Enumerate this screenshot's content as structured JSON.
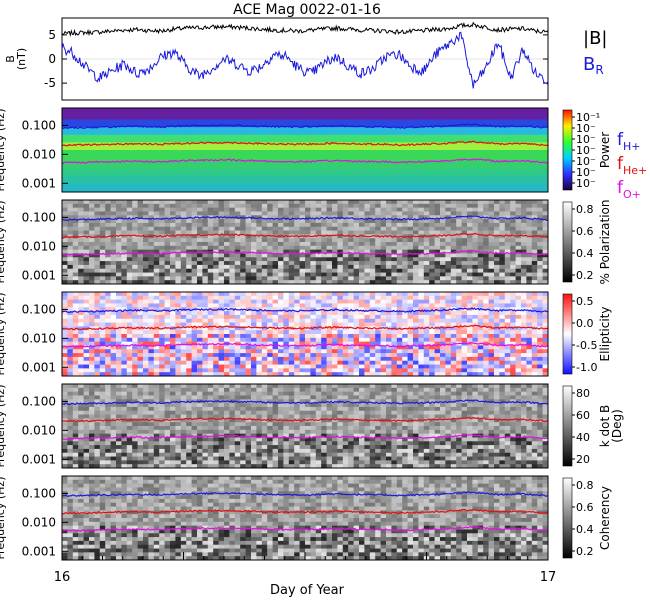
{
  "title": "ACE Mag 0022-01-16",
  "xlabel": "Day of Year",
  "x_start": "16",
  "x_end": "17",
  "colors": {
    "total_field": "#000000",
    "radial_field": "#1a1adc",
    "f_h": "#1a1adc",
    "f_he": "#e01010",
    "f_o": "#e010e0"
  },
  "legend_top": {
    "b_total": "|B|",
    "b_radial": "B",
    "b_radial_sub": "R"
  },
  "legend_freq": [
    {
      "base": "f",
      "sub": "H+",
      "color": "#1a1adc"
    },
    {
      "base": "f",
      "sub": "He+",
      "color": "#e01010"
    },
    {
      "base": "f",
      "sub": "O+",
      "color": "#e010e0"
    }
  ],
  "chart_data": [
    {
      "type": "line",
      "ylabel": "B\n(nT)",
      "ylim": [
        -8.5,
        8.5
      ],
      "yticks": [
        5,
        0,
        -5
      ],
      "ytick_labels": [
        "5",
        "0",
        "-5"
      ],
      "series": [
        {
          "name": "|B|",
          "y": [
            5.2,
            5.4,
            5.5,
            5.6,
            5.8,
            6.0,
            6.1,
            5.9,
            5.8,
            6.2,
            6.4,
            6.5,
            6.6,
            6.7,
            6.6,
            6.4,
            6.2,
            6.0,
            5.9,
            5.8,
            6.0,
            6.2,
            6.4,
            6.2,
            6.0,
            5.9,
            5.8,
            5.6,
            5.7,
            5.9,
            6.1,
            6.3,
            6.9,
            7.1,
            6.6,
            6.0,
            6.2,
            6.3,
            5.8,
            5.5
          ]
        },
        {
          "name": "BR",
          "y": [
            2.5,
            1.0,
            -2.0,
            -4.0,
            -2.5,
            -1.0,
            -3.0,
            -2.0,
            0.5,
            1.5,
            -1.5,
            -3.5,
            -2.0,
            0.0,
            -1.0,
            -2.5,
            -1.5,
            1.0,
            0.5,
            -2.0,
            -3.0,
            -1.0,
            0.5,
            -1.5,
            -3.0,
            -2.0,
            0.5,
            1.0,
            -1.5,
            -2.5,
            1.0,
            3.0,
            5.0,
            -5.5,
            -2.0,
            3.5,
            -4.0,
            2.0,
            -3.0,
            -4.5
          ]
        }
      ]
    },
    {
      "type": "heatmap",
      "ylabel": "Frequency (Hz)",
      "yscale": "log",
      "ylim": [
        0.0005,
        0.4
      ],
      "yticks": [
        0.1,
        0.01,
        0.001
      ],
      "ytick_labels": [
        "0.100",
        "0.010",
        "0.001"
      ],
      "colorbar_label": "Power",
      "colorbar_ticks": [
        "10⁻¹",
        "10⁻",
        "10⁻",
        "10⁻",
        "10⁻",
        "10⁻",
        "10⁻"
      ],
      "colormap": "rainbow",
      "band_colors": [
        "#6420a0",
        "#2a48e0",
        "#28b8e0",
        "#40e070",
        "#a0f040",
        "#3ad858",
        "#34d070",
        "#2ec88a",
        "#28c0a8",
        "#24b8c8"
      ]
    },
    {
      "type": "heatmap",
      "ylabel": "Frequency (Hz)",
      "yscale": "log",
      "ylim": [
        0.0005,
        0.4
      ],
      "yticks": [
        0.1,
        0.01,
        0.001
      ],
      "ytick_labels": [
        "0.100",
        "0.010",
        "0.001"
      ],
      "colorbar_label": "% Polarization",
      "colorbar_ticks": [
        "0.8",
        "0.6",
        "0.4",
        "0.2"
      ],
      "colormap": "gray"
    },
    {
      "type": "heatmap",
      "ylabel": "Frequency (Hz)",
      "yscale": "log",
      "ylim": [
        0.0005,
        0.4
      ],
      "yticks": [
        0.1,
        0.01,
        0.001
      ],
      "ytick_labels": [
        "0.100",
        "0.010",
        "0.001"
      ],
      "colorbar_label": "Ellipticity",
      "colorbar_ticks": [
        "0.5",
        "0.0",
        "-0.5",
        "-1.0"
      ],
      "colormap": "blue-white-red"
    },
    {
      "type": "heatmap",
      "ylabel": "Frequency (Hz)",
      "yscale": "log",
      "ylim": [
        0.0005,
        0.4
      ],
      "yticks": [
        0.1,
        0.01,
        0.001
      ],
      "ytick_labels": [
        "0.100",
        "0.010",
        "0.001"
      ],
      "colorbar_label": "k dot B\n(Deg)",
      "colorbar_ticks": [
        "80",
        "60",
        "40",
        "20"
      ],
      "colormap": "gray"
    },
    {
      "type": "heatmap",
      "ylabel": "Frequency (Hz)",
      "yscale": "log",
      "ylim": [
        0.0005,
        0.4
      ],
      "yticks": [
        0.1,
        0.01,
        0.001
      ],
      "ytick_labels": [
        "0.100",
        "0.010",
        "0.001"
      ],
      "colorbar_label": "Coherency",
      "colorbar_ticks": [
        "0.8",
        "0.6",
        "0.4",
        "0.2"
      ],
      "colormap": "gray"
    }
  ],
  "gyrofrequency_lines": {
    "f_H": [
      0.082,
      0.084,
      0.085,
      0.087,
      0.089,
      0.091,
      0.093,
      0.09,
      0.089,
      0.094,
      0.097,
      0.099,
      0.1,
      0.102,
      0.1,
      0.097,
      0.094,
      0.091,
      0.09,
      0.089,
      0.091,
      0.094,
      0.097,
      0.094,
      0.091,
      0.09,
      0.089,
      0.085,
      0.087,
      0.09,
      0.093,
      0.096,
      0.105,
      0.108,
      0.1,
      0.091,
      0.094,
      0.096,
      0.089,
      0.084
    ],
    "f_He": [
      0.0205,
      0.021,
      0.0213,
      0.0218,
      0.0223,
      0.0228,
      0.0232,
      0.0225,
      0.0223,
      0.0235,
      0.0243,
      0.0248,
      0.025,
      0.0255,
      0.025,
      0.0243,
      0.0235,
      0.0228,
      0.0225,
      0.0223,
      0.0228,
      0.0235,
      0.0243,
      0.0235,
      0.0228,
      0.0225,
      0.0223,
      0.0213,
      0.0218,
      0.0225,
      0.0232,
      0.024,
      0.0262,
      0.027,
      0.025,
      0.0228,
      0.0235,
      0.024,
      0.0223,
      0.021
    ],
    "f_O": [
      0.0051,
      0.0053,
      0.0053,
      0.0055,
      0.0056,
      0.0057,
      0.0058,
      0.0056,
      0.0056,
      0.0059,
      0.0061,
      0.0062,
      0.0063,
      0.0064,
      0.0063,
      0.0061,
      0.0059,
      0.0057,
      0.0056,
      0.0056,
      0.0057,
      0.0059,
      0.0061,
      0.0059,
      0.0057,
      0.0056,
      0.0056,
      0.0053,
      0.0055,
      0.0056,
      0.0058,
      0.006,
      0.0066,
      0.0068,
      0.0063,
      0.0057,
      0.0059,
      0.006,
      0.0056,
      0.0053
    ]
  }
}
